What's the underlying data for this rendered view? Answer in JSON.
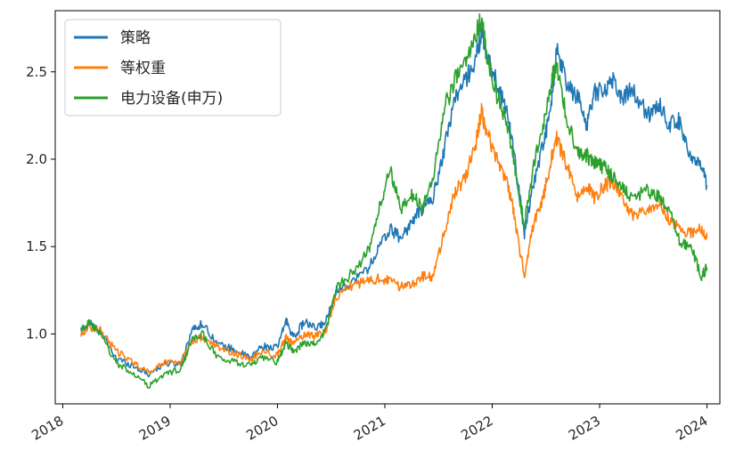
{
  "chart_data": {
    "type": "line",
    "title": "",
    "xlabel": "",
    "ylabel": "",
    "xlim": [
      2017.93,
      2024.12
    ],
    "ylim": [
      0.6,
      2.85
    ],
    "grid": false,
    "legend_position": "top-left",
    "x_ticks": [
      2018,
      2019,
      2020,
      2021,
      2022,
      2023,
      2024
    ],
    "x_tick_labels": [
      "2018",
      "2019",
      "2020",
      "2021",
      "2022",
      "2023",
      "2024"
    ],
    "y_ticks": [
      1.0,
      1.5,
      2.0,
      2.5
    ],
    "y_tick_labels": [
      "1.0",
      "1.5",
      "2.0",
      "2.5"
    ],
    "series": [
      {
        "name": "策略",
        "color": "#1f77b4",
        "points": [
          [
            2018.17,
            1.02
          ],
          [
            2018.25,
            1.06
          ],
          [
            2018.35,
            1.01
          ],
          [
            2018.5,
            0.86
          ],
          [
            2018.65,
            0.82
          ],
          [
            2018.8,
            0.77
          ],
          [
            2018.95,
            0.83
          ],
          [
            2019.1,
            0.83
          ],
          [
            2019.2,
            1.02
          ],
          [
            2019.3,
            1.06
          ],
          [
            2019.45,
            0.94
          ],
          [
            2019.6,
            0.91
          ],
          [
            2019.75,
            0.86
          ],
          [
            2019.85,
            0.93
          ],
          [
            2020.0,
            0.92
          ],
          [
            2020.08,
            1.08
          ],
          [
            2020.15,
            0.98
          ],
          [
            2020.25,
            1.07
          ],
          [
            2020.35,
            1.03
          ],
          [
            2020.45,
            1.07
          ],
          [
            2020.55,
            1.25
          ],
          [
            2020.7,
            1.3
          ],
          [
            2020.85,
            1.38
          ],
          [
            2020.95,
            1.5
          ],
          [
            2021.05,
            1.6
          ],
          [
            2021.15,
            1.55
          ],
          [
            2021.25,
            1.64
          ],
          [
            2021.35,
            1.72
          ],
          [
            2021.45,
            1.78
          ],
          [
            2021.55,
            2.05
          ],
          [
            2021.65,
            2.35
          ],
          [
            2021.75,
            2.45
          ],
          [
            2021.85,
            2.58
          ],
          [
            2021.9,
            2.72
          ],
          [
            2021.95,
            2.6
          ],
          [
            2022.05,
            2.42
          ],
          [
            2022.15,
            2.25
          ],
          [
            2022.22,
            1.95
          ],
          [
            2022.3,
            1.58
          ],
          [
            2022.38,
            1.85
          ],
          [
            2022.48,
            2.1
          ],
          [
            2022.55,
            2.3
          ],
          [
            2022.6,
            2.62
          ],
          [
            2022.7,
            2.42
          ],
          [
            2022.8,
            2.35
          ],
          [
            2022.88,
            2.2
          ],
          [
            2022.95,
            2.38
          ],
          [
            2023.05,
            2.4
          ],
          [
            2023.12,
            2.46
          ],
          [
            2023.2,
            2.35
          ],
          [
            2023.3,
            2.4
          ],
          [
            2023.45,
            2.25
          ],
          [
            2023.55,
            2.32
          ],
          [
            2023.65,
            2.2
          ],
          [
            2023.75,
            2.22
          ],
          [
            2023.85,
            2.0
          ],
          [
            2023.95,
            1.95
          ],
          [
            2024.0,
            1.85
          ]
        ]
      },
      {
        "name": "等权重",
        "color": "#ff7f0e",
        "points": [
          [
            2018.17,
            1.0
          ],
          [
            2018.25,
            1.04
          ],
          [
            2018.35,
            1.02
          ],
          [
            2018.5,
            0.9
          ],
          [
            2018.65,
            0.84
          ],
          [
            2018.8,
            0.78
          ],
          [
            2018.95,
            0.84
          ],
          [
            2019.1,
            0.84
          ],
          [
            2019.2,
            0.96
          ],
          [
            2019.3,
            0.98
          ],
          [
            2019.45,
            0.92
          ],
          [
            2019.6,
            0.89
          ],
          [
            2019.75,
            0.85
          ],
          [
            2019.85,
            0.9
          ],
          [
            2020.0,
            0.88
          ],
          [
            2020.08,
            0.98
          ],
          [
            2020.15,
            0.94
          ],
          [
            2020.25,
            1.0
          ],
          [
            2020.35,
            0.99
          ],
          [
            2020.45,
            1.02
          ],
          [
            2020.55,
            1.22
          ],
          [
            2020.7,
            1.28
          ],
          [
            2020.85,
            1.3
          ],
          [
            2020.95,
            1.32
          ],
          [
            2021.05,
            1.3
          ],
          [
            2021.15,
            1.27
          ],
          [
            2021.25,
            1.29
          ],
          [
            2021.35,
            1.33
          ],
          [
            2021.45,
            1.32
          ],
          [
            2021.55,
            1.58
          ],
          [
            2021.65,
            1.8
          ],
          [
            2021.75,
            1.9
          ],
          [
            2021.85,
            2.1
          ],
          [
            2021.9,
            2.27
          ],
          [
            2021.95,
            2.15
          ],
          [
            2022.05,
            2.0
          ],
          [
            2022.15,
            1.85
          ],
          [
            2022.22,
            1.62
          ],
          [
            2022.3,
            1.33
          ],
          [
            2022.38,
            1.62
          ],
          [
            2022.48,
            1.8
          ],
          [
            2022.55,
            2.0
          ],
          [
            2022.6,
            2.12
          ],
          [
            2022.7,
            1.95
          ],
          [
            2022.8,
            1.78
          ],
          [
            2022.88,
            1.85
          ],
          [
            2022.95,
            1.78
          ],
          [
            2023.05,
            1.85
          ],
          [
            2023.12,
            1.88
          ],
          [
            2023.2,
            1.78
          ],
          [
            2023.3,
            1.68
          ],
          [
            2023.45,
            1.72
          ],
          [
            2023.55,
            1.75
          ],
          [
            2023.65,
            1.65
          ],
          [
            2023.75,
            1.6
          ],
          [
            2023.85,
            1.58
          ],
          [
            2023.95,
            1.6
          ],
          [
            2024.0,
            1.55
          ]
        ]
      },
      {
        "name": "电力设备(申万)",
        "color": "#2ca02c",
        "points": [
          [
            2018.17,
            1.03
          ],
          [
            2018.25,
            1.06
          ],
          [
            2018.35,
            1.0
          ],
          [
            2018.5,
            0.83
          ],
          [
            2018.65,
            0.78
          ],
          [
            2018.8,
            0.7
          ],
          [
            2018.95,
            0.77
          ],
          [
            2019.1,
            0.8
          ],
          [
            2019.2,
            0.96
          ],
          [
            2019.3,
            1.0
          ],
          [
            2019.45,
            0.86
          ],
          [
            2019.6,
            0.84
          ],
          [
            2019.75,
            0.82
          ],
          [
            2019.85,
            0.86
          ],
          [
            2020.0,
            0.84
          ],
          [
            2020.08,
            0.95
          ],
          [
            2020.15,
            0.9
          ],
          [
            2020.25,
            0.95
          ],
          [
            2020.35,
            0.94
          ],
          [
            2020.45,
            1.02
          ],
          [
            2020.55,
            1.27
          ],
          [
            2020.7,
            1.35
          ],
          [
            2020.85,
            1.48
          ],
          [
            2020.95,
            1.72
          ],
          [
            2021.05,
            1.95
          ],
          [
            2021.15,
            1.7
          ],
          [
            2021.25,
            1.8
          ],
          [
            2021.35,
            1.72
          ],
          [
            2021.45,
            1.9
          ],
          [
            2021.55,
            2.28
          ],
          [
            2021.65,
            2.45
          ],
          [
            2021.75,
            2.55
          ],
          [
            2021.85,
            2.72
          ],
          [
            2021.9,
            2.8
          ],
          [
            2021.95,
            2.6
          ],
          [
            2022.05,
            2.35
          ],
          [
            2022.15,
            2.18
          ],
          [
            2022.22,
            1.9
          ],
          [
            2022.3,
            1.62
          ],
          [
            2022.38,
            1.95
          ],
          [
            2022.48,
            2.2
          ],
          [
            2022.55,
            2.45
          ],
          [
            2022.6,
            2.55
          ],
          [
            2022.7,
            2.2
          ],
          [
            2022.8,
            2.05
          ],
          [
            2022.88,
            2.02
          ],
          [
            2022.95,
            1.98
          ],
          [
            2023.05,
            1.95
          ],
          [
            2023.12,
            1.9
          ],
          [
            2023.2,
            1.85
          ],
          [
            2023.3,
            1.78
          ],
          [
            2023.45,
            1.82
          ],
          [
            2023.55,
            1.78
          ],
          [
            2023.65,
            1.7
          ],
          [
            2023.75,
            1.52
          ],
          [
            2023.85,
            1.5
          ],
          [
            2023.95,
            1.33
          ],
          [
            2024.0,
            1.38
          ]
        ]
      }
    ]
  }
}
